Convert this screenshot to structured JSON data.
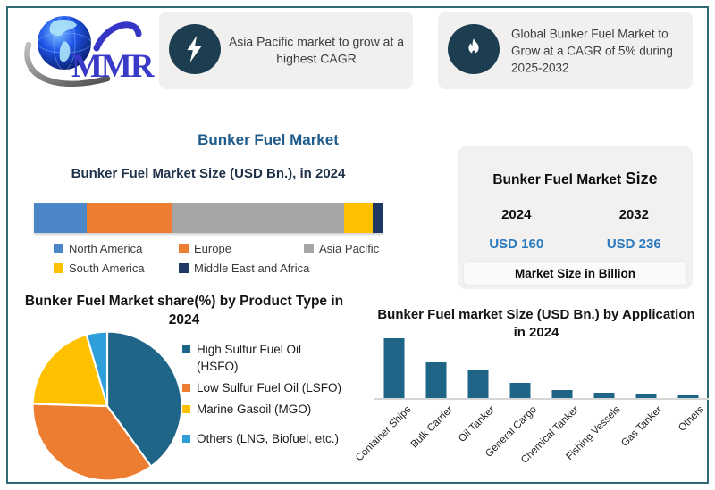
{
  "frame": {
    "border_color": "#2E6B77"
  },
  "logo": {
    "brand": "MMR"
  },
  "callouts": [
    {
      "icon": "lightning-bolt-icon",
      "text": "Asia Pacific market to grow at a highest CAGR"
    },
    {
      "icon": "flame-icon",
      "text": "Global Bunker Fuel Market to Grow at a CAGR of 5% during 2025-2032"
    }
  ],
  "main_title": "Bunker Fuel Market",
  "market_size_panel": {
    "title_prefix": "Bunker Fuel Market",
    "title_emphasis": "Size",
    "columns": [
      {
        "year": "2024",
        "value": "USD 160"
      },
      {
        "year": "2032",
        "value": "USD 236"
      }
    ],
    "footnote": "Market Size in Billion",
    "value_color": "#2879C0"
  },
  "chart_data": [
    {
      "id": "regional-stacked-bar",
      "type": "bar",
      "subtype": "horizontal-stacked",
      "title": "Bunker Fuel Market Size (USD Bn.), in 2024",
      "categories": [
        "2024"
      ],
      "series": [
        {
          "name": "North America",
          "value_pct": 15.0,
          "color": "#4A86C8"
        },
        {
          "name": "Europe",
          "value_pct": 24.4,
          "color": "#ED7D31"
        },
        {
          "name": "Asia Pacific",
          "value_pct": 49.7,
          "color": "#A6A6A6"
        },
        {
          "name": "South America",
          "value_pct": 8.2,
          "color": "#FFC000"
        },
        {
          "name": "Middle East and Africa",
          "value_pct": 2.7,
          "color": "#1F3864"
        }
      ],
      "legend_position": "bottom",
      "note": "single stacked bar, no axes shown; segment values estimated from pixel widths as % share"
    },
    {
      "id": "product-type-pie",
      "type": "pie",
      "title": "Bunker Fuel Market  share(%) by Product Type in 2024",
      "slices": [
        {
          "label": "High Sulfur Fuel Oil (HSFO)",
          "value_pct": 40.0,
          "color": "#1F6587"
        },
        {
          "label": "Low Sulfur Fuel Oil (LSFO)",
          "value_pct": 35.5,
          "color": "#ED7D31"
        },
        {
          "label": "Marine Gasoil (MGO)",
          "value_pct": 20.0,
          "color": "#FFC000"
        },
        {
          "label": "Others (LNG, Biofuel, etc.)",
          "value_pct": 4.5,
          "color": "#2E9FD9"
        }
      ],
      "legend_position": "right",
      "start_angle_deg": 0,
      "direction": "clockwise",
      "note": "no data labels shown; slice percentages estimated from angles"
    },
    {
      "id": "application-bar",
      "type": "bar",
      "title": "Bunker Fuel market Size (USD Bn.) by Application in 2024",
      "categories": [
        "Container Ships",
        "Bulk Carrier",
        "Oil Tanker",
        "General Cargo",
        "Chemical Tanker",
        "Fishing Vessels",
        "Gas Tanker",
        "Others"
      ],
      "values_relative": [
        69,
        41,
        33,
        18,
        9,
        6,
        4,
        3
      ],
      "ylim": [
        0,
        74
      ],
      "bar_color": "#1F6587",
      "grid": false,
      "note": "no y-axis or value labels shown; values are relative bar heights in px"
    }
  ]
}
